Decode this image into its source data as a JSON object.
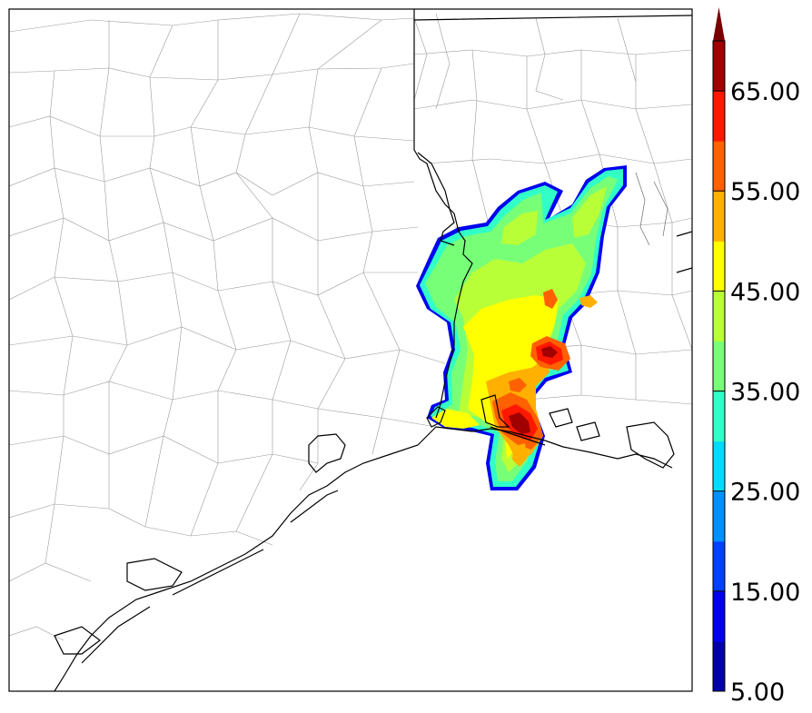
{
  "colorbar": {
    "min_label": "5.00",
    "tick_labels": [
      "15.00",
      "25.00",
      "35.00",
      "45.00",
      "55.00",
      "65.00"
    ],
    "levels": [
      5,
      10,
      15,
      20,
      25,
      30,
      35,
      40,
      45,
      50,
      55,
      60,
      65,
      70
    ],
    "colors": [
      "#0000a8",
      "#0000f0",
      "#0040ff",
      "#0090ff",
      "#00dcff",
      "#30ffc8",
      "#78ff78",
      "#b8ff38",
      "#ffff00",
      "#ffb000",
      "#ff6000",
      "#ff1800",
      "#a00000"
    ],
    "extend": "max",
    "extend_color": "#780000"
  },
  "map": {
    "border_color": "#000000",
    "county_color": "#9a9a9a"
  }
}
